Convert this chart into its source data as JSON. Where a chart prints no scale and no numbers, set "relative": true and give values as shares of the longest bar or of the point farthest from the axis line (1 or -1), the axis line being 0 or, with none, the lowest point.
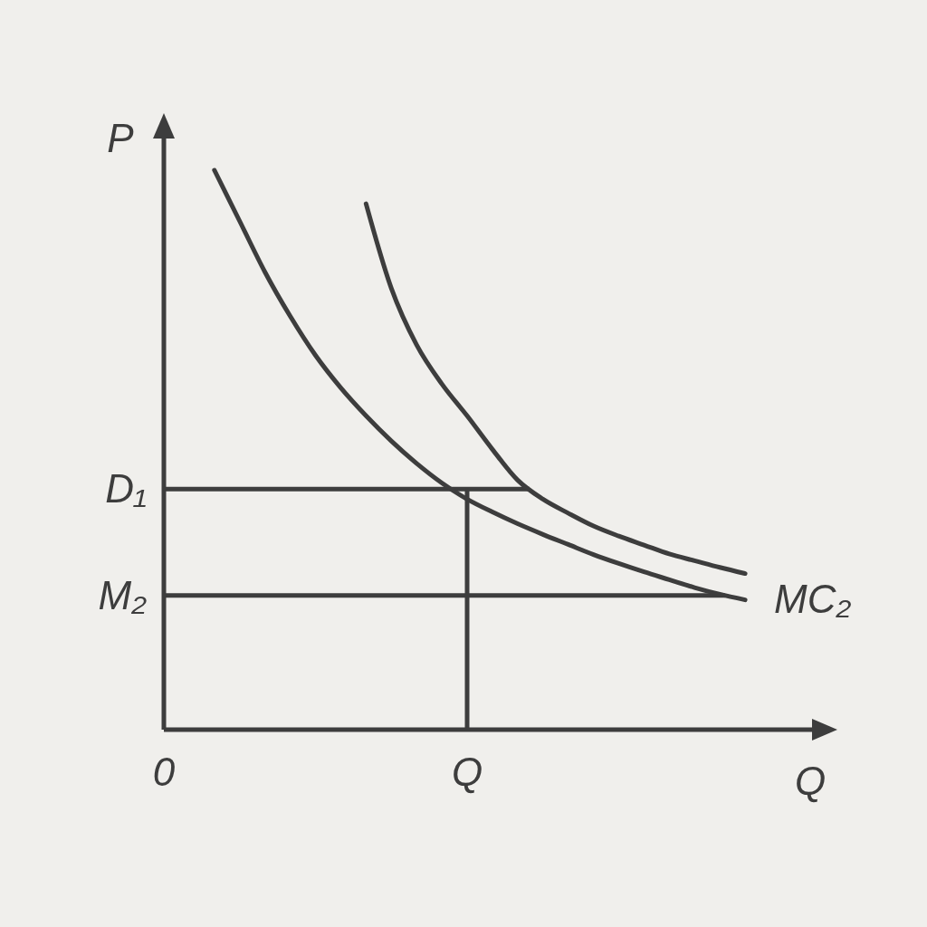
{
  "chart_data": {
    "type": "line",
    "relative": true,
    "xlabel": "Q",
    "ylabel": "P",
    "categories": [
      "0",
      null,
      null,
      null,
      null,
      null,
      null,
      null,
      null,
      null,
      null,
      null,
      "Q",
      null,
      null,
      null,
      null,
      null,
      null,
      null,
      null,
      null,
      null,
      null,
      null
    ],
    "series": [
      {
        "name": "MC₂",
        "color": "#3d3d3d",
        "values": [
          null,
          null,
          1.0,
          0.909,
          0.818,
          0.739,
          0.669,
          0.611,
          0.561,
          0.516,
          0.476,
          0.441,
          0.412,
          0.389,
          0.368,
          0.349,
          0.331,
          0.313,
          0.297,
          0.282,
          0.268,
          0.254,
          0.242,
          0.232,
          null
        ]
      },
      {
        "color": "#3d3d3d",
        "values": [
          null,
          null,
          null,
          null,
          null,
          null,
          null,
          null,
          0.94,
          0.789,
          0.688,
          0.618,
          0.561,
          0.501,
          0.446,
          0.412,
          0.387,
          0.364,
          0.346,
          0.33,
          0.314,
          0.302,
          0.29,
          0.279,
          null
        ]
      }
    ],
    "ref_lines": [
      {
        "axis": "y",
        "value": 0.43,
        "label": "D₁"
      },
      {
        "axis": "y",
        "value": 0.24,
        "label": "M₂"
      },
      {
        "axis": "x",
        "value": "Q"
      }
    ]
  }
}
